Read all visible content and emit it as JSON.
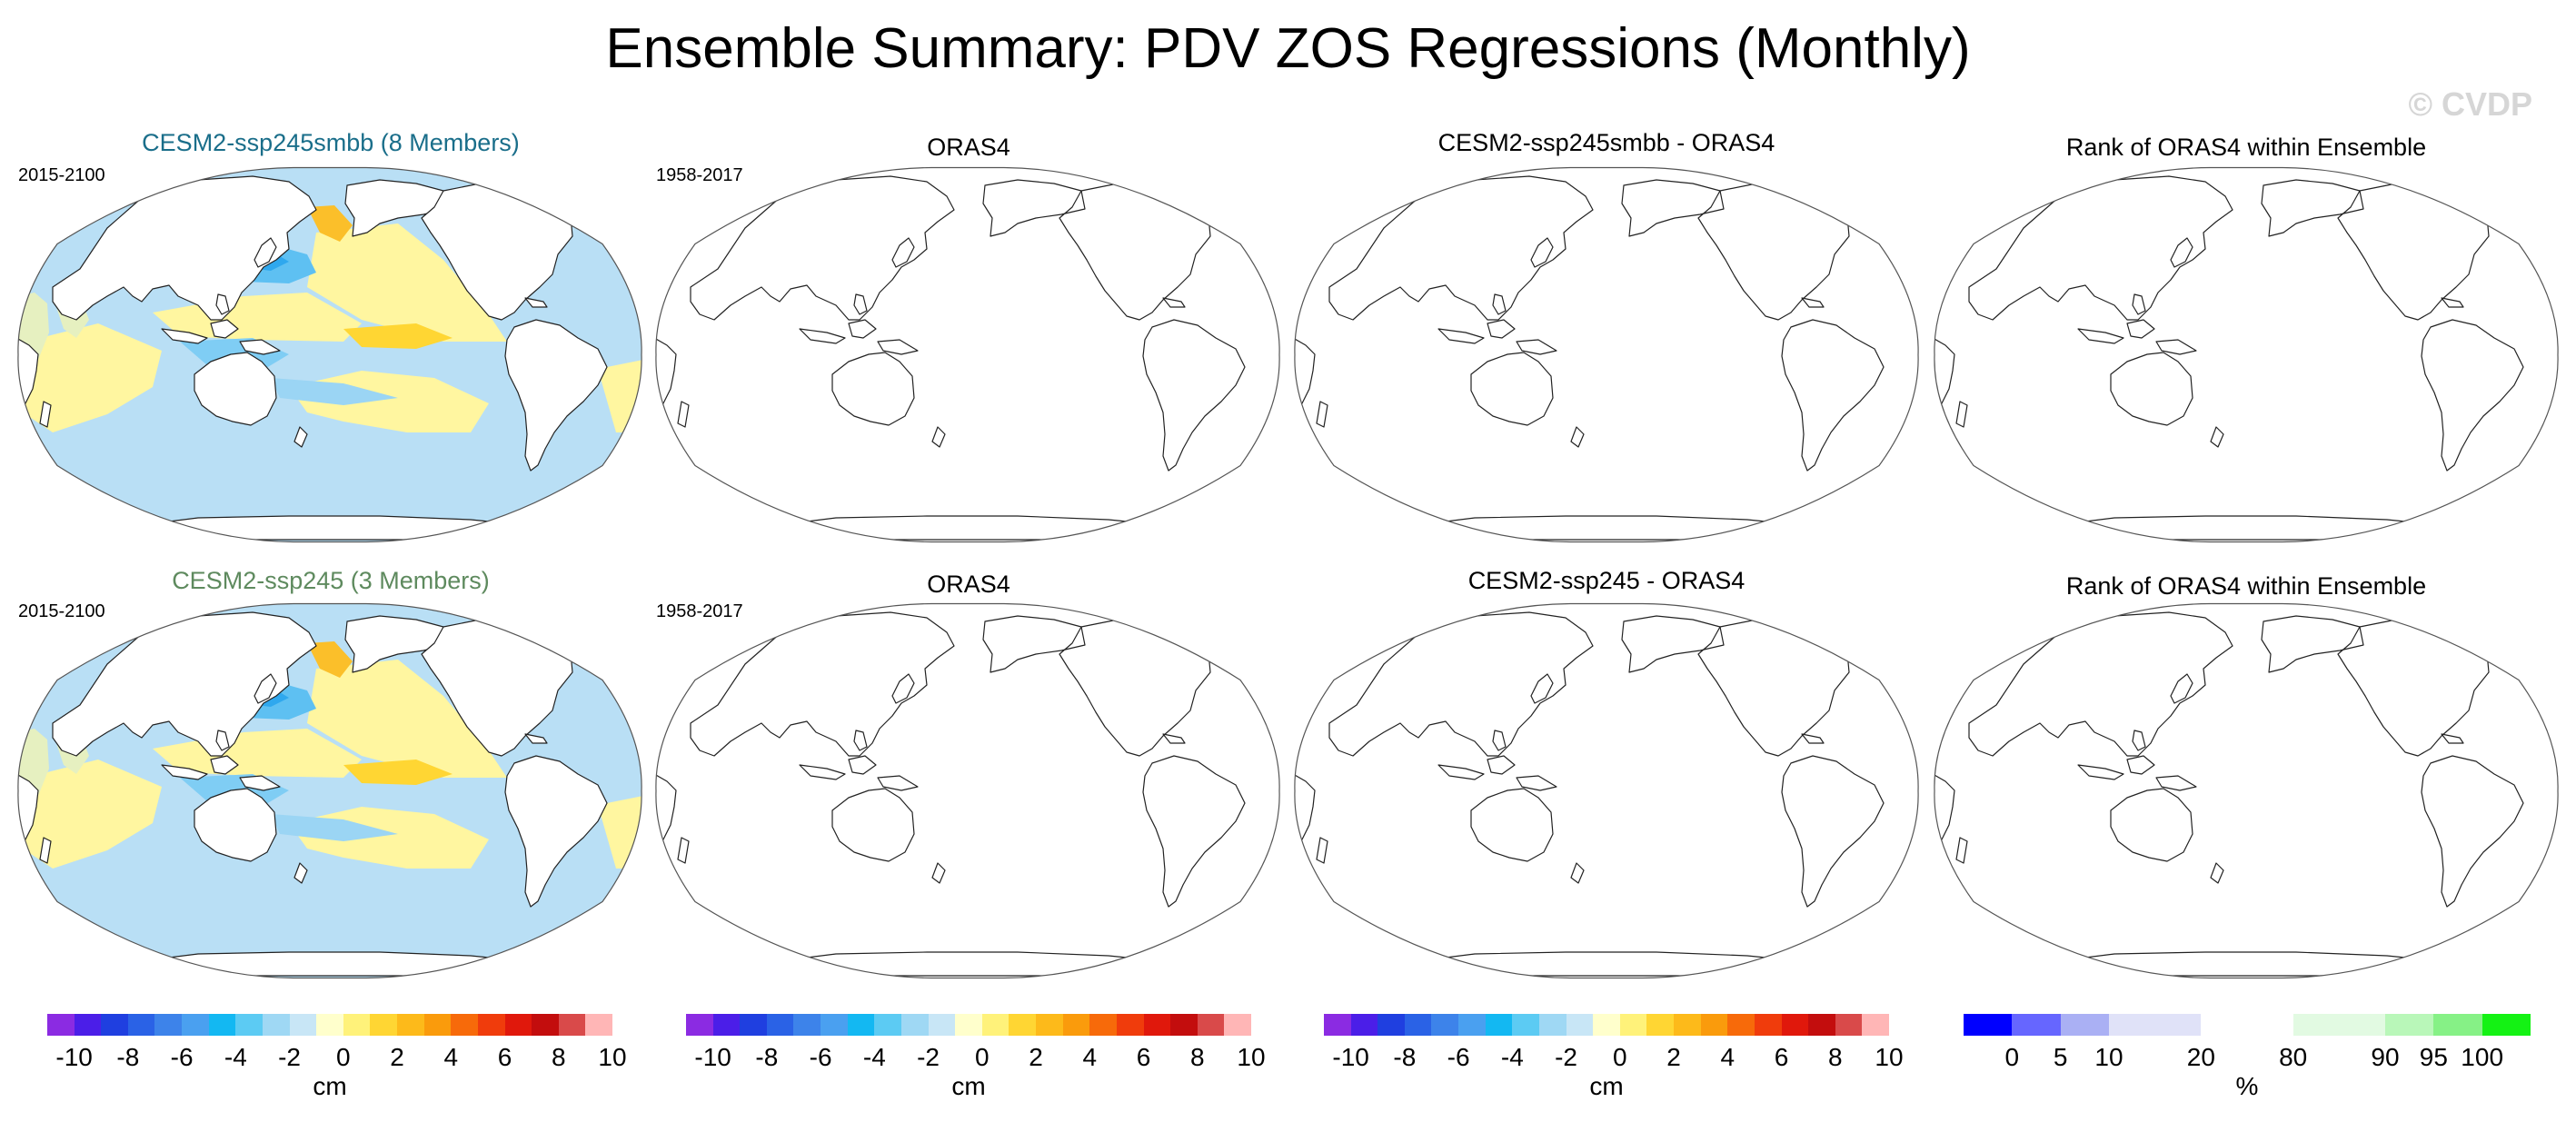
{
  "figure": {
    "title": "Ensemble Summary: PDV ZOS Regressions (Monthly)",
    "watermark": "© CVDP"
  },
  "rows": [
    {
      "ensemble": {
        "title": "CESM2-ssp245smbb (8 Members)",
        "title_color": "#1a6e8a",
        "period": "2015-2100",
        "field_filled": true
      },
      "observation": {
        "title": "ORAS4",
        "period": "1958-2017",
        "field_filled": false
      },
      "difference": {
        "title": "CESM2-ssp245smbb - ORAS4",
        "field_filled": false
      },
      "rank": {
        "title": "Rank of ORAS4 within Ensemble",
        "field_filled": false
      }
    },
    {
      "ensemble": {
        "title": "CESM2-ssp245 (3 Members)",
        "title_color": "#5e8a5e",
        "period": "2015-2100",
        "field_filled": true
      },
      "observation": {
        "title": "ORAS4",
        "period": "1958-2017",
        "field_filled": false
      },
      "difference": {
        "title": "CESM2-ssp245 - ORAS4",
        "field_filled": false
      },
      "rank": {
        "title": "Rank of ORAS4 within Ensemble",
        "field_filled": false
      }
    }
  ],
  "colorbars": {
    "regression": {
      "unit": "cm",
      "ticks": [
        "-10",
        "-8",
        "-6",
        "-4",
        "-2",
        "0",
        "2",
        "4",
        "6",
        "8",
        "10"
      ],
      "colors": [
        "#8b2be2",
        "#4b1ee8",
        "#1f3fe0",
        "#2a62e6",
        "#3d83ea",
        "#4aa0f0",
        "#13b8f2",
        "#5ccbf3",
        "#9fd8f4",
        "#c8e6f6",
        "#ffffcc",
        "#fff27a",
        "#ffd633",
        "#fdba1a",
        "#fa9b0c",
        "#f76a0a",
        "#f03c0c",
        "#e0180c",
        "#c30d0d",
        "#d94a4a",
        "#ffb6b6"
      ]
    },
    "rank": {
      "unit": "%",
      "ticks": [
        "0",
        "5",
        "10",
        "20",
        "80",
        "90",
        "95",
        "100"
      ],
      "colors": [
        "#0000ff",
        "#6666ff",
        "#aab0f4",
        "#e0e2f8",
        "#ffffff",
        "#e2fae2",
        "#b9f7b9",
        "#86f186",
        "#14f214"
      ]
    }
  }
}
